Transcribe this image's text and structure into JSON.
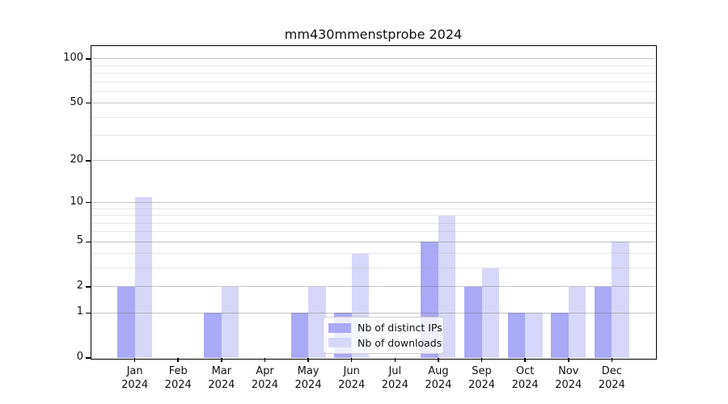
{
  "title": "mm430mmenstprobe 2024",
  "chart_data": {
    "type": "bar",
    "title": "mm430mmenstprobe 2024",
    "categories": [
      "Jan 2024",
      "Feb 2024",
      "Mar 2024",
      "Apr 2024",
      "May 2024",
      "Jun 2024",
      "Jul 2024",
      "Aug 2024",
      "Sep 2024",
      "Oct 2024",
      "Nov 2024",
      "Dec 2024"
    ],
    "series": [
      {
        "name": "Nb of distinct IPs",
        "color": "#a9a9f5",
        "values": [
          2,
          0,
          1,
          0,
          1,
          1,
          0,
          5,
          2,
          1,
          1,
          2
        ]
      },
      {
        "name": "Nb of downloads",
        "color": "#d7d7f9",
        "values": [
          11,
          0,
          2,
          0,
          2,
          4,
          0,
          8,
          3,
          1,
          2,
          5
        ]
      }
    ],
    "xlabel": "",
    "ylabel": "",
    "yscale": "log1p",
    "yticks": [
      0,
      1,
      2,
      5,
      10,
      20,
      50,
      100
    ],
    "yticks_minor": [
      3,
      4,
      6,
      7,
      8,
      9,
      30,
      40,
      60,
      70,
      80,
      90
    ],
    "ylim": [
      0,
      122
    ],
    "grid": true,
    "legend_position": "lower center"
  },
  "colors": {
    "bar_ips": "#a9a9f5",
    "bar_downloads": "#d7d7f9",
    "grid_major": "#c9c9c9",
    "grid_minor": "#ececec",
    "spine": "#000000",
    "background": "#ffffff"
  }
}
